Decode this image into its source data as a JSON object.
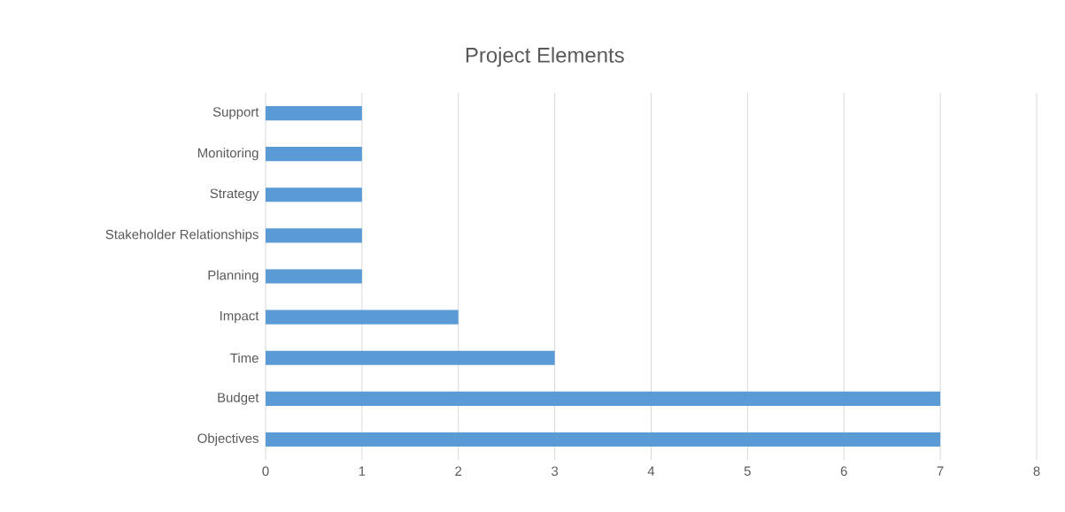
{
  "chart_data": {
    "type": "bar",
    "orientation": "horizontal",
    "title": "Project Elements",
    "categories": [
      "Support",
      "Monitoring",
      "Strategy",
      "Stakeholder Relationships",
      "Planning",
      "Impact",
      "Time",
      "Budget",
      "Objectives"
    ],
    "values": [
      1,
      1,
      1,
      1,
      1,
      2,
      3,
      7,
      7
    ],
    "color": "#5b9bd5",
    "xlim": [
      0,
      8
    ],
    "xticks": [
      0,
      1,
      2,
      3,
      4,
      5,
      6,
      7,
      8
    ],
    "grid": "x"
  }
}
